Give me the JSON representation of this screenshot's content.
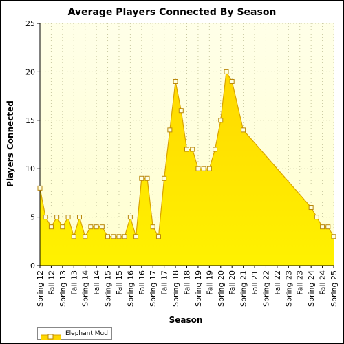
{
  "chart_data": {
    "type": "area",
    "title": "Average Players Connected By Season",
    "xlabel": "Season",
    "ylabel": "Players Connected",
    "ylim": [
      0,
      25
    ],
    "yticks": [
      0,
      5,
      10,
      15,
      20,
      25
    ],
    "categories": [
      "Spring 12",
      "Fall 12",
      "Spring 13",
      "Fall 13",
      "Spring 14",
      "Fall 14",
      "Spring 15",
      "Fall 15",
      "Spring 16",
      "Fall 16",
      "Spring 17",
      "Fall 17",
      "Spring 18",
      "Fall 18",
      "Spring 19",
      "Fall 19",
      "Spring 20",
      "Fall 20",
      "Spring 21",
      "Fall 21",
      "Spring 22",
      "Fall 22",
      "Spring 23",
      "Fall 23",
      "Spring 24",
      "Fall 24",
      "Spring 25"
    ],
    "series": [
      {
        "name": "Elephant Mud",
        "points": [
          [
            0.0,
            8
          ],
          [
            0.5,
            5
          ],
          [
            1.0,
            4
          ],
          [
            1.5,
            5
          ],
          [
            2.0,
            4
          ],
          [
            2.5,
            5
          ],
          [
            3.0,
            3
          ],
          [
            3.5,
            5
          ],
          [
            4.0,
            3
          ],
          [
            4.5,
            4
          ],
          [
            5.0,
            4
          ],
          [
            5.5,
            4
          ],
          [
            6.0,
            3
          ],
          [
            6.5,
            3
          ],
          [
            7.0,
            3
          ],
          [
            7.5,
            3
          ],
          [
            8.0,
            5
          ],
          [
            8.5,
            3
          ],
          [
            9.0,
            9
          ],
          [
            9.5,
            9
          ],
          [
            10.0,
            4
          ],
          [
            10.5,
            3
          ],
          [
            11.0,
            9
          ],
          [
            11.5,
            14
          ],
          [
            12.0,
            19
          ],
          [
            12.5,
            16
          ],
          [
            13.0,
            12
          ],
          [
            13.5,
            12
          ],
          [
            14.0,
            10
          ],
          [
            14.5,
            10
          ],
          [
            15.0,
            10
          ],
          [
            15.5,
            12
          ],
          [
            16.0,
            15
          ],
          [
            16.5,
            20
          ],
          [
            17.0,
            19
          ],
          [
            18.0,
            14
          ],
          [
            24.0,
            6
          ],
          [
            24.5,
            5
          ],
          [
            25.0,
            4
          ],
          [
            25.5,
            4
          ],
          [
            26.0,
            3
          ]
        ]
      }
    ],
    "grid": true,
    "legend_position": "bottom-left",
    "colors": {
      "fill_top": "#ffd800",
      "fill_bottom": "#fff200",
      "line": "#d9a400",
      "marker_fill": "#ffffe0",
      "marker_stroke": "#b8860b",
      "plot_bg_top": "#ffffe8",
      "plot_bg_bottom": "#ffffd0",
      "grid": "#c8c8a0"
    }
  }
}
